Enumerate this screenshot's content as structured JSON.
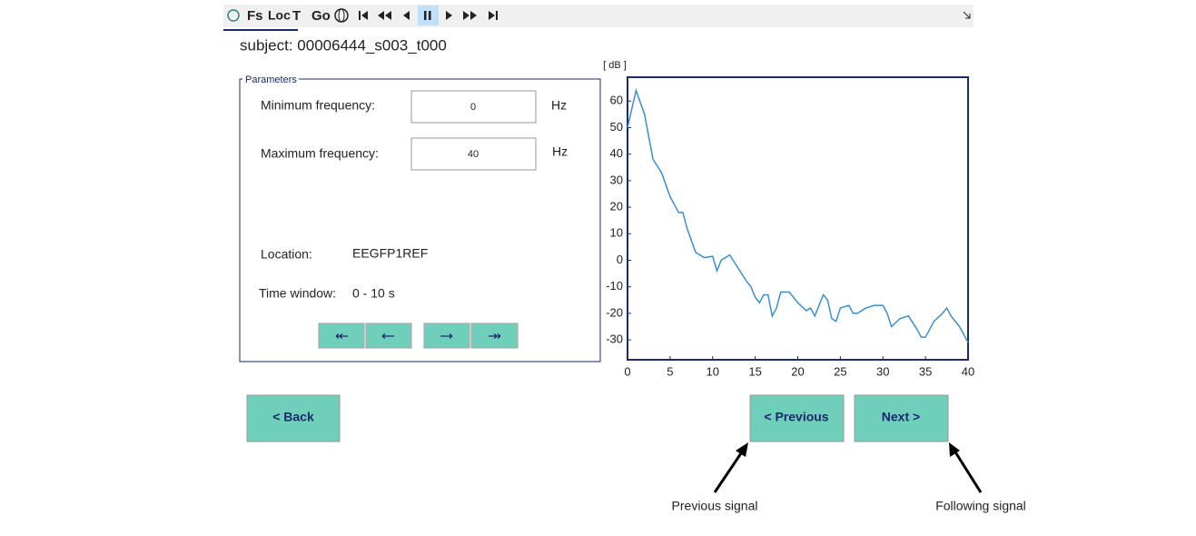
{
  "toolbar": {
    "buttons": [
      "Fs",
      "Loc",
      "T",
      "Go"
    ]
  },
  "subject": "subject: 00006444_s003_t000",
  "parameters": {
    "title": "Parameters",
    "min_freq": {
      "label": "Minimum frequency:",
      "value": 0,
      "unit": "Hz"
    },
    "max_freq": {
      "label": "Maximum frequency:",
      "value": 40,
      "unit": "Hz"
    },
    "location": {
      "label": "Location:",
      "value": "EEGFP1REF"
    },
    "time_window": {
      "label": "Time window:",
      "value": "0 - 10 s"
    }
  },
  "buttons": {
    "back": "<  Back",
    "previous": "< Previous",
    "next": "Next  >"
  },
  "annotations": [
    "Previous signal",
    "Following signal"
  ],
  "chart_data": {
    "type": "line",
    "ylabel": "[ dB ]",
    "color": "#3a8fd0",
    "x": [
      0,
      1,
      2,
      3,
      4,
      5,
      6,
      6.5,
      7,
      8,
      9,
      10,
      10.5,
      11,
      12,
      13,
      14,
      14.5,
      15,
      15.5,
      16,
      16.5,
      17,
      17.5,
      18,
      19,
      20,
      21,
      21.5,
      22,
      23,
      23.5,
      24,
      24.5,
      25,
      26,
      26.5,
      27,
      28,
      29,
      30,
      30.5,
      31,
      32,
      33,
      34,
      34.5,
      35,
      36,
      37,
      37.5,
      38,
      39,
      40
    ],
    "values": [
      50,
      64,
      55,
      38,
      33,
      24,
      18,
      18,
      12,
      3,
      1,
      1.5,
      -4,
      0,
      2,
      -3,
      -8,
      -10,
      -14,
      -16,
      -13,
      -13,
      -21,
      -18,
      -12,
      -12,
      -16,
      -19,
      -18,
      -21,
      -13,
      -15,
      -22,
      -23,
      -18,
      -17,
      -20,
      -20,
      -18,
      -17,
      -17,
      -20,
      -25,
      -22,
      -21,
      -26,
      -29,
      -29,
      -23,
      -20,
      -18,
      -21,
      -25,
      -31
    ],
    "xlim": [
      0,
      40
    ],
    "ylim": [
      -37.5,
      69
    ],
    "xticks": [
      0,
      5,
      10,
      15,
      20,
      25,
      30,
      35,
      40
    ],
    "yticks": [
      -30,
      -20,
      -10,
      0,
      10,
      20,
      30,
      40,
      50,
      60
    ]
  }
}
